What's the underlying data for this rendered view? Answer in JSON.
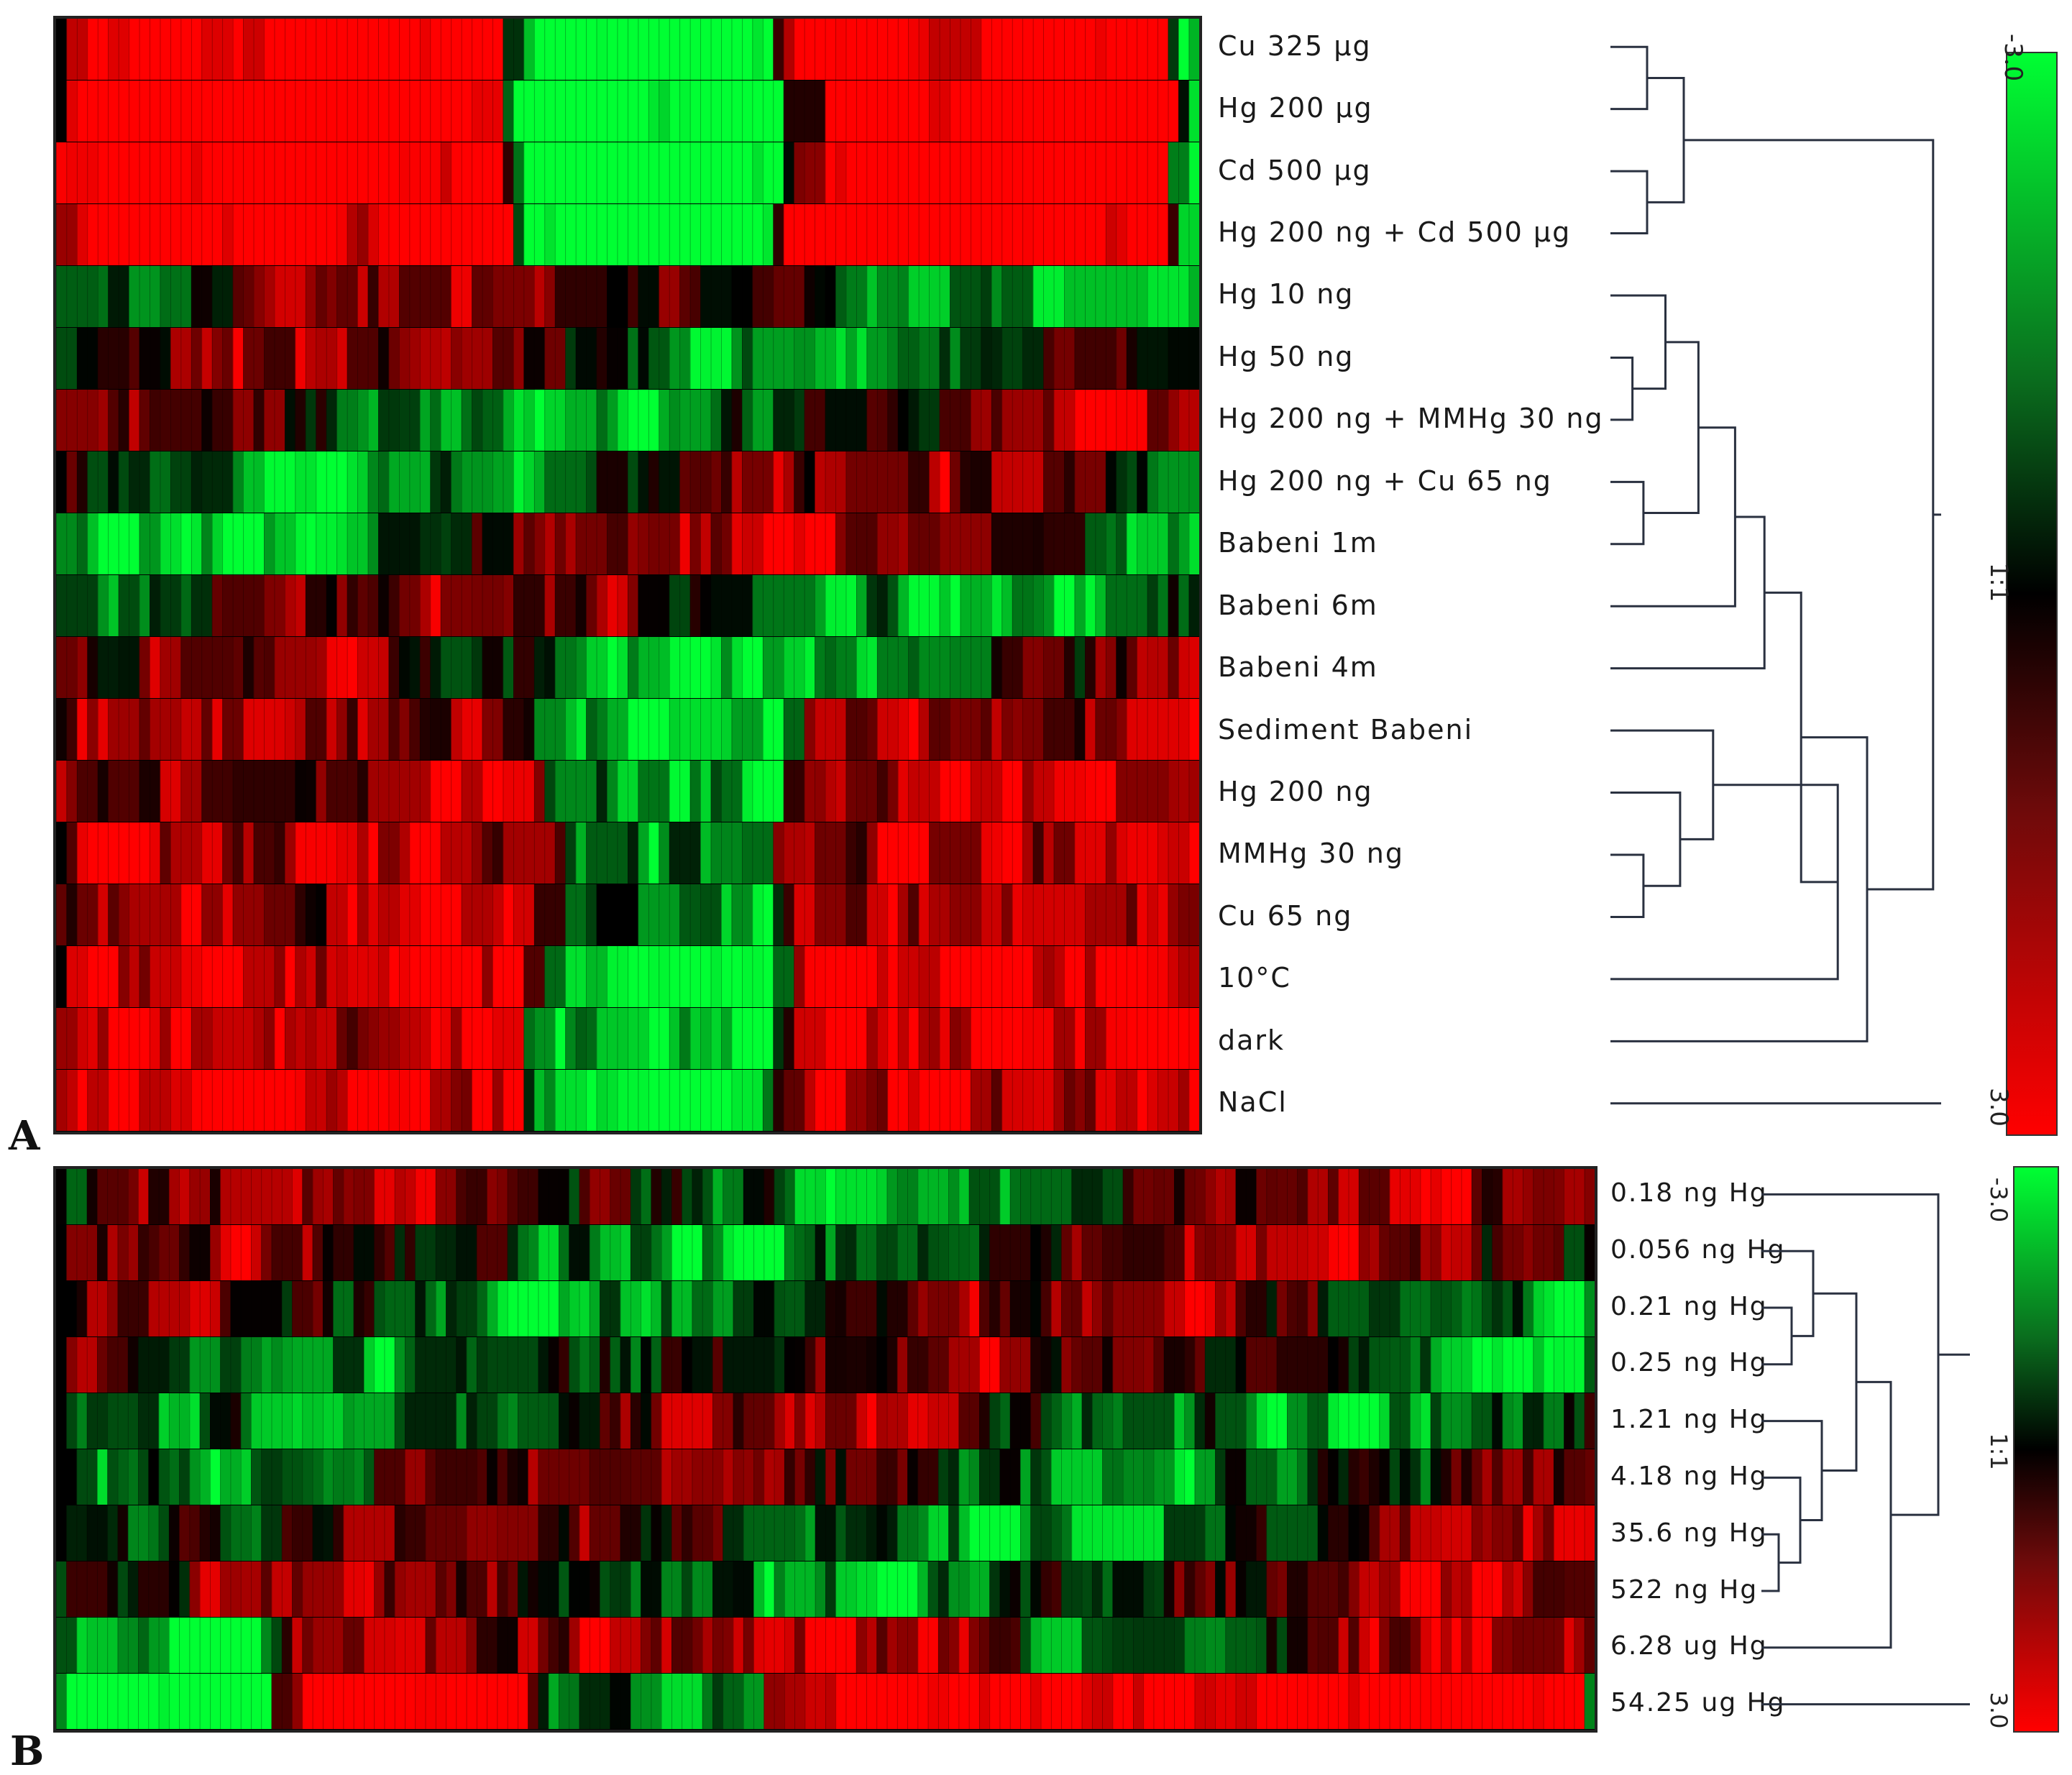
{
  "panels": [
    {
      "letter": "A",
      "row_labels": [
        "Cu 325 µg",
        "Hg 200 µg",
        "Cd 500 µg",
        "Hg 200 ng + Cd 500 µg",
        "Hg 10 ng",
        "Hg 50 ng",
        "Hg 200 ng + MMHg 30 ng",
        "Hg 200 ng + Cu 65 ng",
        "Babeni 1m",
        "Babeni 6m",
        "Babeni 4m",
        "Sediment Babeni",
        "Hg 200 ng",
        "MMHg 30 ng",
        "Cu 65 ng",
        "10°C",
        "dark",
        "NaCl"
      ],
      "colorbar": {
        "top": "-3.0",
        "middle": "1:1",
        "bottom": "3.0"
      }
    },
    {
      "letter": "B",
      "row_labels": [
        "0.18 ng Hg",
        "0.056 ng Hg",
        "0.21 ng Hg",
        "0.25 ng Hg",
        "1.21 ng Hg",
        "4.18 ng Hg",
        "35.6 ng Hg",
        "522 ng Hg",
        "6.28 ug Hg",
        "54.25 ug Hg"
      ],
      "colorbar": {
        "top": "-3.0",
        "middle": "1:1",
        "bottom": "3.0"
      }
    }
  ],
  "colors": {
    "green": "#00ff33",
    "black": "#000000",
    "red": "#ff0000",
    "dendrogram": "#2a3140"
  }
}
